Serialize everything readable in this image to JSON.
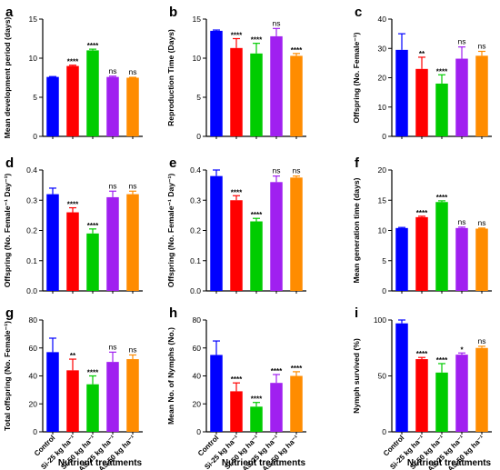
{
  "shared": {
    "categories": [
      "Control",
      "Si-25 kg ha⁻¹",
      "Si-50 kg ha⁻¹",
      "AS-25 kg ha⁻¹",
      "AS-50 kg ha⁻¹"
    ],
    "colors": [
      "#0000ff",
      "#ff0000",
      "#00cc00",
      "#a020f0",
      "#ff8c00"
    ],
    "xlabel": "Nutrient treatments"
  },
  "chart_data": [
    {
      "panel": "a",
      "type": "bar",
      "ylabel": "Mean development period (days)",
      "ylim": [
        0,
        15
      ],
      "ticks": [
        0,
        5,
        10,
        15
      ],
      "tick_labels": [
        "0",
        "5",
        "10",
        "15"
      ],
      "values": [
        7.6,
        9.0,
        11.0,
        7.6,
        7.5
      ],
      "errors": [
        0.05,
        0.1,
        0.15,
        0.1,
        0.05
      ],
      "significance": [
        "",
        "****",
        "****",
        "ns",
        "ns"
      ]
    },
    {
      "panel": "b",
      "type": "bar",
      "ylabel": "Reproduction Time (Days)",
      "ylim": [
        0,
        15
      ],
      "ticks": [
        0,
        5,
        10,
        15
      ],
      "tick_labels": [
        "0",
        "5",
        "10",
        "15"
      ],
      "values": [
        13.5,
        11.3,
        10.6,
        12.8,
        10.3
      ],
      "errors": [
        0.1,
        1.2,
        1.3,
        1.0,
        0.3
      ],
      "significance": [
        "",
        "****",
        "****",
        "ns",
        "****"
      ]
    },
    {
      "panel": "c",
      "type": "bar",
      "ylabel": "Offspring (No. Female⁻¹)",
      "ylim": [
        0,
        40
      ],
      "ticks": [
        0,
        10,
        20,
        30,
        40
      ],
      "tick_labels": [
        "0",
        "10",
        "20",
        "30",
        "40"
      ],
      "values": [
        29.5,
        23.0,
        18.0,
        26.5,
        27.5
      ],
      "errors": [
        5.5,
        4.0,
        3.0,
        4.0,
        1.5
      ],
      "significance": [
        "",
        "**",
        "****",
        "ns",
        "ns"
      ]
    },
    {
      "panel": "d",
      "type": "bar",
      "ylabel": "Offspring (No. Female⁻¹ Day⁻¹)",
      "ylim": [
        0,
        0.4
      ],
      "ticks": [
        0,
        0.1,
        0.2,
        0.3,
        0.4
      ],
      "tick_labels": [
        "0.0",
        "0.1",
        "0.2",
        "0.3",
        "0.4"
      ],
      "values": [
        0.32,
        0.26,
        0.19,
        0.31,
        0.32
      ],
      "errors": [
        0.02,
        0.015,
        0.015,
        0.02,
        0.01
      ],
      "significance": [
        "",
        "****",
        "****",
        "ns",
        "ns"
      ]
    },
    {
      "panel": "e",
      "type": "bar",
      "ylabel": "Offspring (No. Female⁻¹ Day⁻¹)",
      "ylim": [
        0,
        0.4
      ],
      "ticks": [
        0,
        0.1,
        0.2,
        0.3,
        0.4
      ],
      "tick_labels": [
        "0.0",
        "0.1",
        "0.2",
        "0.3",
        "0.4"
      ],
      "values": [
        0.38,
        0.3,
        0.23,
        0.36,
        0.375
      ],
      "errors": [
        0.02,
        0.015,
        0.01,
        0.02,
        0.005
      ],
      "significance": [
        "",
        "****",
        "****",
        "ns",
        "ns"
      ]
    },
    {
      "panel": "f",
      "type": "bar",
      "ylabel": "Mean generation time (days)",
      "ylim": [
        0,
        20
      ],
      "ticks": [
        0,
        5,
        10,
        15,
        20
      ],
      "tick_labels": [
        "0",
        "5",
        "10",
        "15",
        "20"
      ],
      "values": [
        10.4,
        12.2,
        14.7,
        10.4,
        10.3
      ],
      "errors": [
        0.1,
        0.15,
        0.2,
        0.15,
        0.1
      ],
      "significance": [
        "",
        "****",
        "****",
        "ns",
        "ns"
      ]
    },
    {
      "panel": "g",
      "type": "bar",
      "ylabel": "Total offspring (No. Female⁻¹)",
      "ylim": [
        0,
        80
      ],
      "ticks": [
        0,
        20,
        40,
        60,
        80
      ],
      "tick_labels": [
        "0",
        "20",
        "40",
        "60",
        "80"
      ],
      "values": [
        57,
        44,
        34,
        50,
        52
      ],
      "errors": [
        10,
        8,
        6,
        7,
        3
      ],
      "significance": [
        "",
        "**",
        "****",
        "ns",
        "ns"
      ]
    },
    {
      "panel": "h",
      "type": "bar",
      "ylabel": "Mean No. of Nymphs (No.)",
      "ylim": [
        0,
        80
      ],
      "ticks": [
        0,
        20,
        40,
        60,
        80
      ],
      "tick_labels": [
        "0",
        "20",
        "40",
        "60",
        "80"
      ],
      "values": [
        55,
        29,
        18,
        35,
        40
      ],
      "errors": [
        10,
        6,
        3,
        6,
        3
      ],
      "significance": [
        "",
        "****",
        "****",
        "****",
        "****"
      ]
    },
    {
      "panel": "i",
      "type": "bar",
      "ylabel": "Nymph survived (%)",
      "ylim": [
        0,
        100
      ],
      "ticks": [
        0,
        50,
        100
      ],
      "tick_labels": [
        "0",
        "50",
        "100"
      ],
      "values": [
        97,
        65,
        53,
        69,
        75
      ],
      "errors": [
        3,
        1.5,
        8,
        1.5,
        1.5
      ],
      "significance": [
        "",
        "****",
        "****",
        "*",
        "ns"
      ]
    }
  ]
}
